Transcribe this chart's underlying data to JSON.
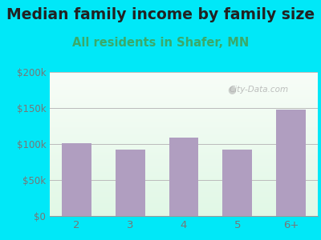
{
  "title": "Median family income by family size",
  "subtitle": "All residents in Shafer, MN",
  "categories": [
    "2",
    "3",
    "4",
    "5",
    "6+"
  ],
  "values": [
    101000,
    92000,
    109000,
    92000,
    148000
  ],
  "bar_color": "#b09ec0",
  "title_fontsize": 13.5,
  "subtitle_fontsize": 10.5,
  "subtitle_color": "#3aaa6a",
  "title_color": "#222222",
  "ylim": [
    0,
    200000
  ],
  "yticks": [
    0,
    50000,
    100000,
    150000,
    200000
  ],
  "ytick_labels": [
    "$0",
    "$50k",
    "$100k",
    "$150k",
    "$200k"
  ],
  "background_outer": "#00e8f8",
  "grid_color": "#bbbbbb",
  "watermark": "City-Data.com",
  "tick_color": "#777777"
}
